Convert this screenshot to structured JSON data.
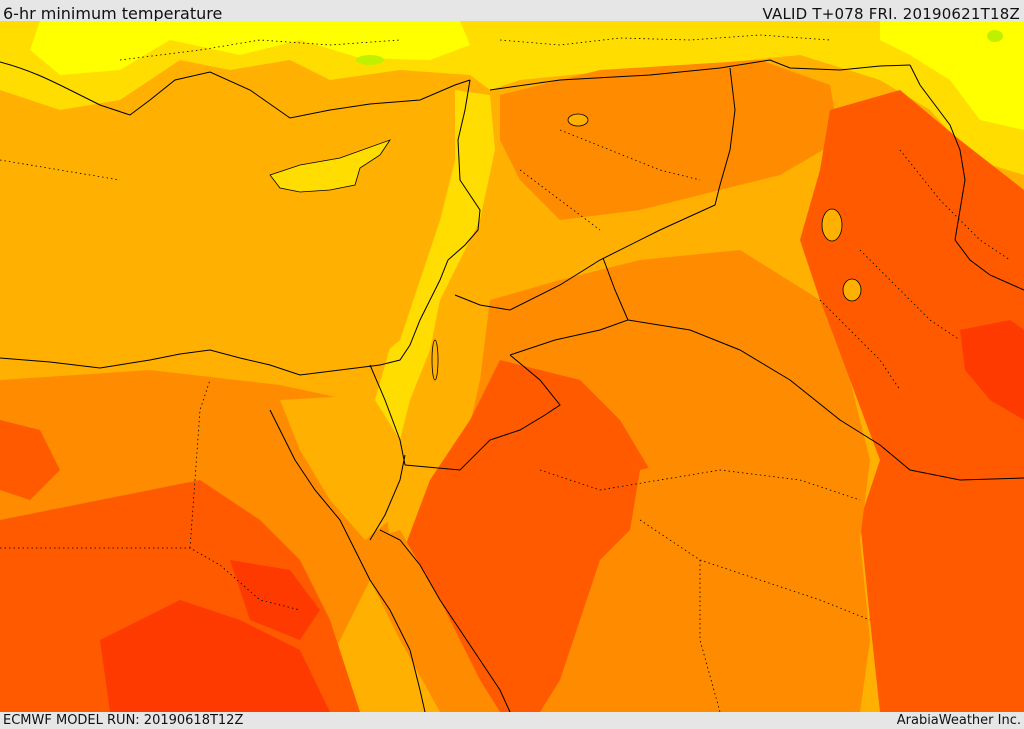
{
  "header": {
    "title": "6-hr minimum temperature",
    "valid": "VALID T+078 FRI. 20190621T18Z"
  },
  "footer": {
    "model_run": "ECMWF MODEL RUN: 20190618T12Z",
    "credit": "ArabiaWeather Inc."
  },
  "map": {
    "region": "Eastern Mediterranean, Levant, Egypt, Iraq and northern Arabia",
    "colors": {
      "coolest": "#ffff00",
      "cool": "#ffdd00",
      "mild": "#ffb000",
      "warm": "#ff8c00",
      "hot": "#ff5a00",
      "hottest": "#ff3a00",
      "green_spot": "#bff000",
      "borders": "#000000"
    }
  }
}
